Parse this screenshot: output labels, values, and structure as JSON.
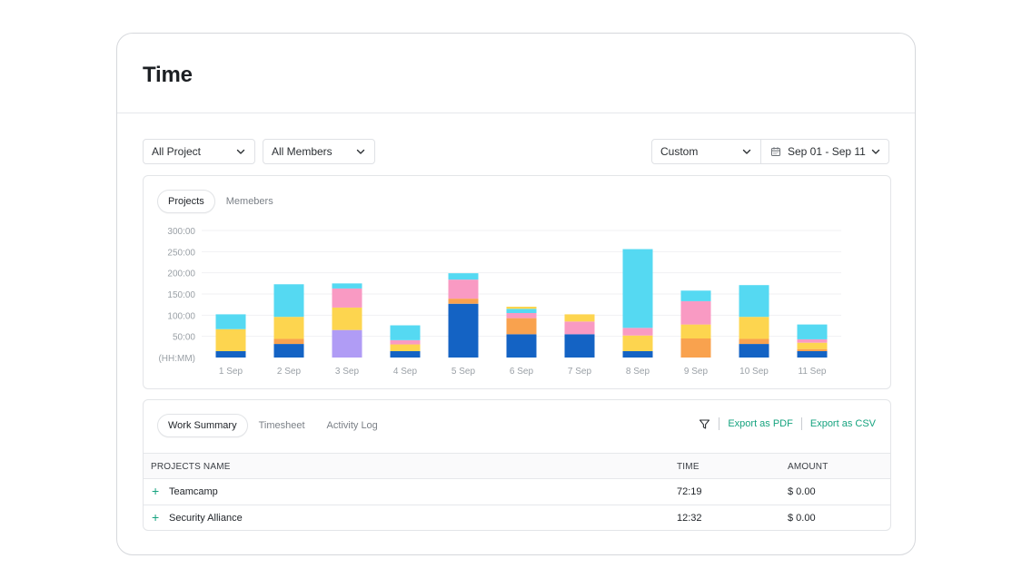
{
  "page": {
    "title": "Time"
  },
  "filters": {
    "project": "All Project",
    "members": "All Members",
    "period": "Custom",
    "date_range": "Sep 01 - Sep 11"
  },
  "chart_tabs": [
    {
      "label": "Projects",
      "active": true
    },
    {
      "label": "Memebers",
      "active": false
    }
  ],
  "chart_data": {
    "type": "bar",
    "stacked": true,
    "title": "",
    "xlabel": "",
    "ylabel": "(HH:MM)",
    "ylim": [
      0,
      300
    ],
    "y_ticks": [
      "(HH:MM)",
      "50:00",
      "100:00",
      "150:00",
      "200:00",
      "250:00",
      "300:00"
    ],
    "grid": true,
    "categories": [
      "1 Sep",
      "2 Sep",
      "3 Sep",
      "4 Sep",
      "5 Sep",
      "6 Sep",
      "7 Sep",
      "8 Sep",
      "9 Sep",
      "10 Sep",
      "11 Sep"
    ],
    "series": [
      {
        "color": "#1463c4",
        "values": [
          15,
          32,
          0,
          15,
          127,
          55,
          55,
          15,
          0,
          32,
          15
        ]
      },
      {
        "color": "#b09cf5",
        "values": [
          0,
          0,
          65,
          0,
          0,
          0,
          0,
          0,
          0,
          0,
          0
        ]
      },
      {
        "color": "#f9a24e",
        "values": [
          0,
          12,
          0,
          0,
          12,
          38,
          0,
          0,
          45,
          12,
          5
        ]
      },
      {
        "color": "#fdd54f",
        "values": [
          52,
          52,
          53,
          16,
          0,
          0,
          0,
          37,
          33,
          52,
          15
        ]
      },
      {
        "color": "#f99ac3",
        "values": [
          0,
          0,
          45,
          10,
          45,
          12,
          30,
          18,
          55,
          0,
          8
        ]
      },
      {
        "color": "#55d9f2",
        "values": [
          35,
          77,
          12,
          35,
          15,
          10,
          0,
          186,
          25,
          75,
          35
        ]
      },
      {
        "color": "#fdd54f",
        "values": [
          0,
          0,
          0,
          0,
          0,
          5,
          17,
          0,
          0,
          0,
          0
        ]
      }
    ]
  },
  "table_tabs": [
    {
      "label": "Work Summary",
      "active": true
    },
    {
      "label": "Timesheet",
      "active": false
    },
    {
      "label": "Activity Log",
      "active": false
    }
  ],
  "actions": {
    "export_pdf": "Export as PDF",
    "export_csv": "Export as CSV"
  },
  "table": {
    "columns": {
      "name": "PROJECTS NAME",
      "time": "TIME",
      "amount": "AMOUNT"
    },
    "rows": [
      {
        "name": "Teamcamp",
        "time": "72:19",
        "amount": "$ 0.00"
      },
      {
        "name": "Security Alliance",
        "time": "12:32",
        "amount": "$ 0.00"
      }
    ]
  },
  "colors": {
    "accent": "#16a37f",
    "border": "#e3e5e8"
  },
  "icons": {
    "dropdown": "chevron-down-icon",
    "calendar": "calendar-icon",
    "filter": "filter-icon",
    "expand": "plus-icon"
  }
}
